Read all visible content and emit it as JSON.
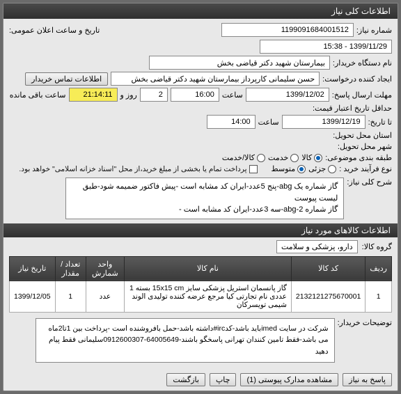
{
  "headers": {
    "main": "اطلاعات کلی نیاز",
    "items": "اطلاعات کالاهای مورد نیاز"
  },
  "labels": {
    "need_no": "شماره نیاز:",
    "pub_datetime": "تاریخ و ساعت اعلان عمومی:",
    "device": "نام دستگاه خریدار:",
    "creator": "ایجاد کننده درخواست:",
    "buyer_contact": "اطلاعات تماس خریدار",
    "reply_deadline": "مهلت ارسال پاسخ:",
    "time": "ساعت",
    "day": "روز و",
    "remain": "ساعت باقی مانده",
    "min_credit": "حداقل تاریخ اعتبار قیمت:",
    "until": "تا تاریخ:",
    "deliver_province": "استان محل تحویل:",
    "deliver_city": "شهر محل تحویل:",
    "budget_cat": "طبقه بندی موضوعی:",
    "goods": "کالا",
    "service": "خدمت",
    "goods_service": "کالا/خدمت",
    "buy_type": "نوع فرآیند خرید :",
    "low": "جزئی",
    "mid": "متوسط",
    "partial_pay": "پرداخت تمام یا بخشی از مبلغ خرید،از محل \"اسناد خزانه اسلامی\" خواهد بود.",
    "summary": "شرح کلی نیاز:",
    "group": "گروه کالا:",
    "buyer_notes": "توضیحات خریدار:"
  },
  "values": {
    "need_no": "1199091684001512",
    "pub_datetime": "1399/11/29 - 15:38",
    "device_name": "بیمارستان شهید دکتر قیاضی بخش",
    "creator": "حسن سلیمانی کارپرداز بیمارستان شهید دکتر قیاضی بخش",
    "reply_date": "1399/12/02",
    "reply_time": "16:00",
    "reply_days": "2",
    "reply_remain": "21:14:11",
    "credit_date": "1399/12/19",
    "credit_time": "14:00",
    "summary_line1": "گاز شماره یک abg-پنج 5عدد-ایران کد مشابه است -پیش فاکتور ضمیمه شود-طبق لیست پیوست",
    "summary_line2": "گاز شماره 2-abg-سه 3عدد-ایران کد مشابه است -",
    "group": "دارو، پزشکی و سلامت",
    "buyer_notes": "شرکت در سایت imedباید باشد-کدirc#داشته باشد-حمل بافروشنده است -پرداخت بین 1تا2ماه می باشد-فقط تامین کنندان تهرانی پاسخگو باشند-64005649-0912600307سلیمانی فقط پیام دهید"
  },
  "radios": {
    "goods": true,
    "service": false,
    "goods_service": false,
    "low": false,
    "mid": true
  },
  "checks": {
    "partial_pay": false
  },
  "table": {
    "cols": [
      "ردیف",
      "کد کالا",
      "نام کالا",
      "واحد شمارش",
      "تعداد / مقدار",
      "تاریخ نیاز"
    ],
    "rows": [
      [
        "1",
        "2132121275670001",
        "گاز پانسمان استریل پزشکی سایز 15x15 cm بسته 1 عددی نام تجارتی کیا مرجع عرضه کننده تولیدی الوند شیمی تویسرکان",
        "عدد",
        "1",
        "1399/12/05"
      ]
    ]
  },
  "buttons": {
    "reply": "پاسخ به نیاز",
    "attachments": "مشاهده مدارک پیوستی (1)",
    "print": "چاپ",
    "back": "بازگشت"
  }
}
